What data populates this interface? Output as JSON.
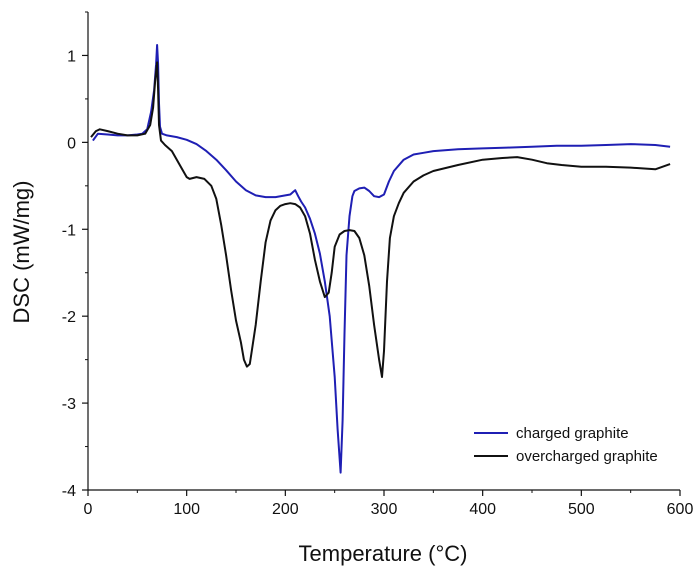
{
  "chart_data": {
    "type": "line",
    "title": "",
    "xlabel": "Temperature (°C)",
    "ylabel": "DSC (mW/mg)",
    "xlim": [
      0,
      600
    ],
    "ylim": [
      -4,
      1.5
    ],
    "xticks": [
      0,
      100,
      200,
      300,
      400,
      500,
      600
    ],
    "yticks": [
      -4,
      -3,
      -2,
      -1,
      0,
      1
    ],
    "grid": false,
    "legend_position": "bottom-right",
    "series": [
      {
        "name": "charged graphite",
        "color": "#1f1fb4",
        "x": [
          5,
          10,
          20,
          30,
          40,
          50,
          55,
          60,
          64,
          67,
          69,
          70,
          71,
          72,
          73,
          75,
          80,
          90,
          100,
          110,
          120,
          130,
          140,
          150,
          160,
          170,
          180,
          190,
          200,
          205,
          208,
          210,
          213,
          216,
          220,
          225,
          230,
          235,
          240,
          245,
          250,
          253,
          256,
          258,
          260,
          262,
          265,
          268,
          270,
          275,
          280,
          285,
          290,
          295,
          300,
          305,
          310,
          320,
          330,
          340,
          350,
          375,
          400,
          425,
          450,
          475,
          500,
          525,
          550,
          575,
          590
        ],
        "y": [
          0.02,
          0.1,
          0.09,
          0.08,
          0.08,
          0.09,
          0.1,
          0.15,
          0.35,
          0.6,
          0.9,
          1.12,
          0.9,
          0.45,
          0.18,
          0.1,
          0.08,
          0.06,
          0.03,
          -0.02,
          -0.1,
          -0.2,
          -0.32,
          -0.45,
          -0.55,
          -0.61,
          -0.63,
          -0.63,
          -0.61,
          -0.6,
          -0.57,
          -0.55,
          -0.62,
          -0.68,
          -0.75,
          -0.88,
          -1.05,
          -1.28,
          -1.6,
          -2.0,
          -2.7,
          -3.3,
          -3.8,
          -3.2,
          -2.2,
          -1.3,
          -0.85,
          -0.62,
          -0.56,
          -0.53,
          -0.52,
          -0.56,
          -0.62,
          -0.63,
          -0.6,
          -0.45,
          -0.33,
          -0.2,
          -0.14,
          -0.12,
          -0.1,
          -0.08,
          -0.07,
          -0.06,
          -0.05,
          -0.04,
          -0.04,
          -0.03,
          -0.02,
          -0.03,
          -0.05
        ]
      },
      {
        "name": "overcharged graphite",
        "color": "#111111",
        "x": [
          3,
          8,
          12,
          20,
          30,
          40,
          50,
          58,
          63,
          66,
          68,
          70,
          71,
          72,
          74,
          78,
          85,
          90,
          95,
          100,
          103,
          110,
          118,
          125,
          130,
          135,
          140,
          145,
          150,
          155,
          158,
          161,
          164,
          166,
          170,
          175,
          180,
          185,
          190,
          195,
          200,
          205,
          210,
          215,
          220,
          225,
          230,
          235,
          240,
          244,
          247,
          250,
          255,
          260,
          265,
          270,
          275,
          280,
          285,
          290,
          295,
          298,
          300,
          303,
          306,
          310,
          315,
          320,
          330,
          340,
          350,
          375,
          400,
          420,
          435,
          450,
          465,
          480,
          500,
          525,
          550,
          575,
          590
        ],
        "y": [
          0.06,
          0.13,
          0.15,
          0.13,
          0.1,
          0.08,
          0.08,
          0.1,
          0.2,
          0.4,
          0.7,
          0.92,
          0.6,
          0.2,
          0.02,
          -0.03,
          -0.1,
          -0.2,
          -0.3,
          -0.4,
          -0.42,
          -0.4,
          -0.42,
          -0.5,
          -0.65,
          -0.95,
          -1.3,
          -1.7,
          -2.05,
          -2.3,
          -2.5,
          -2.58,
          -2.55,
          -2.4,
          -2.1,
          -1.6,
          -1.15,
          -0.9,
          -0.78,
          -0.73,
          -0.71,
          -0.7,
          -0.71,
          -0.75,
          -0.85,
          -1.05,
          -1.35,
          -1.6,
          -1.78,
          -1.73,
          -1.5,
          -1.2,
          -1.06,
          -1.02,
          -1.01,
          -1.02,
          -1.1,
          -1.3,
          -1.65,
          -2.1,
          -2.5,
          -2.7,
          -2.4,
          -1.6,
          -1.1,
          -0.85,
          -0.7,
          -0.58,
          -0.45,
          -0.38,
          -0.33,
          -0.26,
          -0.2,
          -0.18,
          -0.17,
          -0.2,
          -0.24,
          -0.26,
          -0.28,
          -0.28,
          -0.29,
          -0.31,
          -0.25
        ]
      }
    ]
  }
}
